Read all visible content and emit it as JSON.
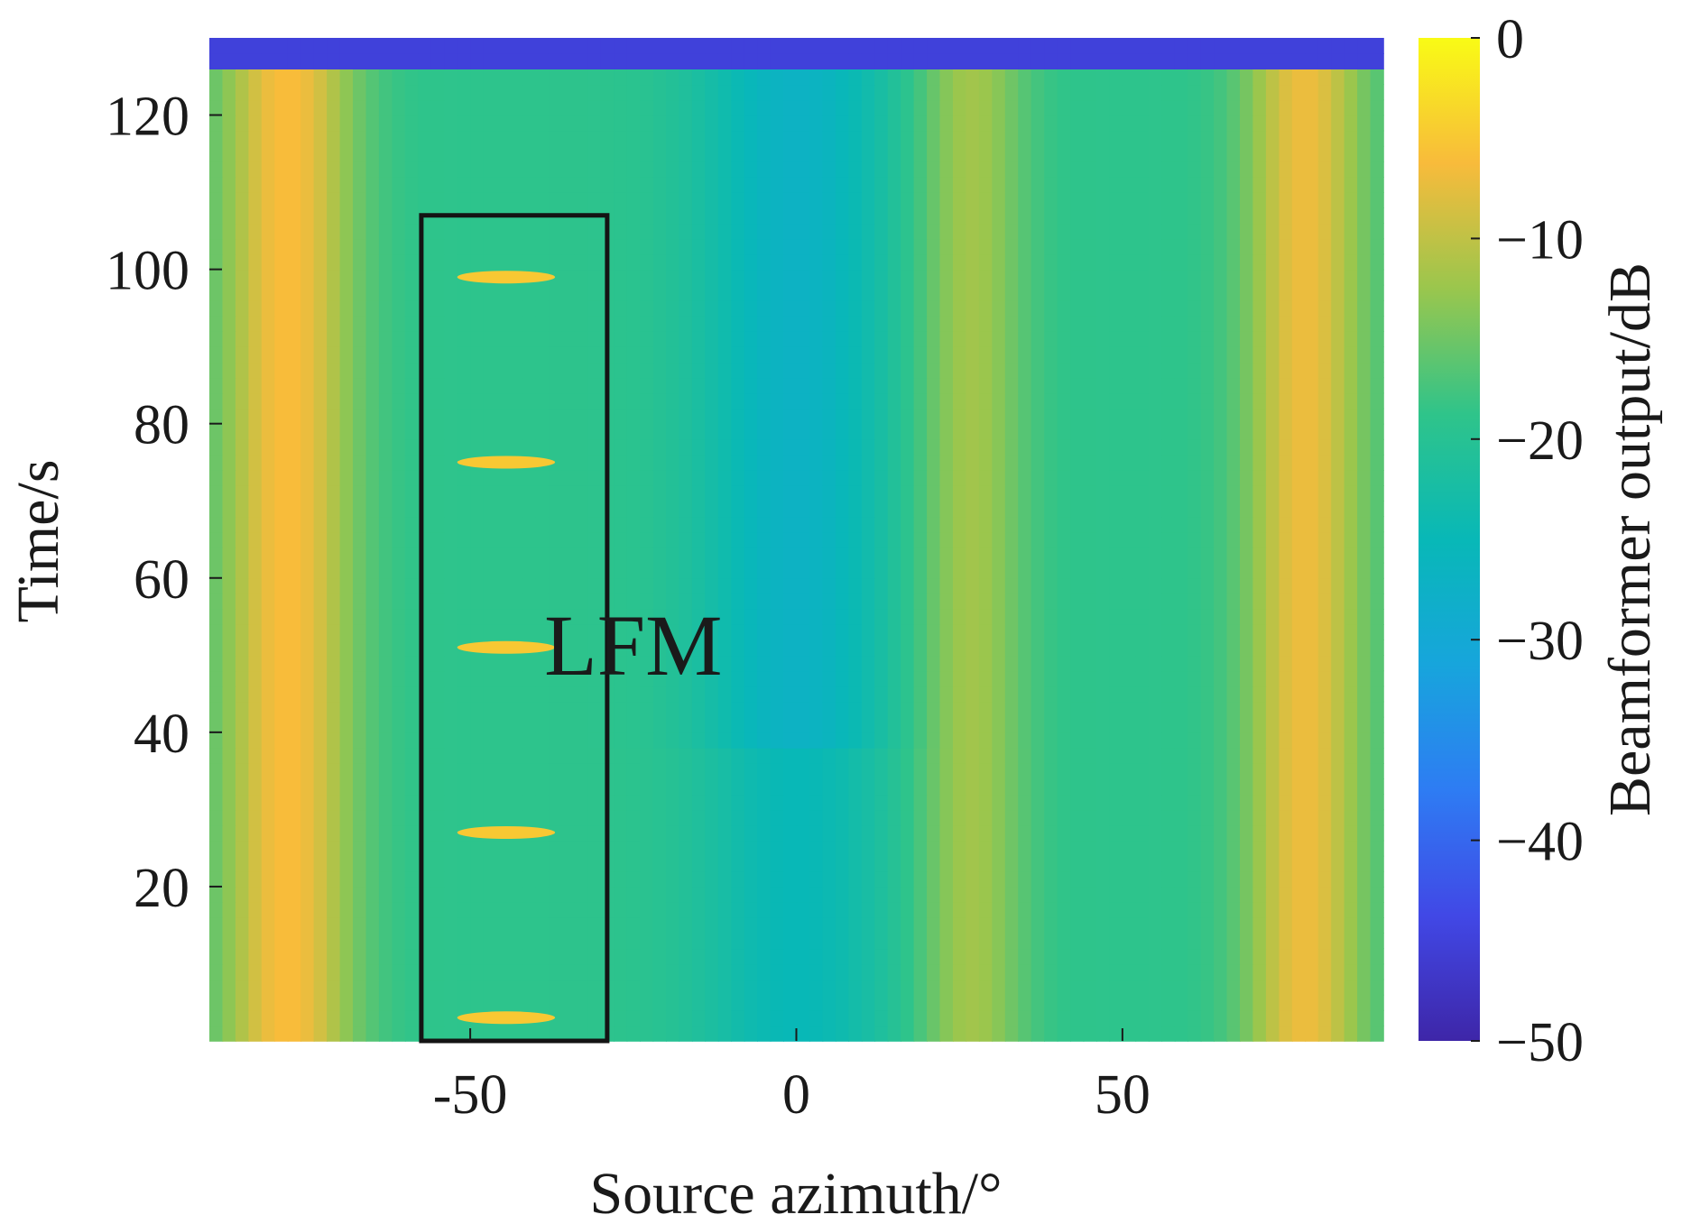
{
  "chart_data": {
    "type": "heatmap",
    "title": "",
    "xlabel": "Source azimuth/°",
    "ylabel": "Time/s",
    "colorbar_label": "Beamformer output/dB",
    "xlim": [
      -90,
      90
    ],
    "ylim": [
      0,
      130
    ],
    "clim": [
      -50,
      0
    ],
    "colormap": "parula",
    "x_ticks": [
      {
        "value": -50,
        "label": "-50"
      },
      {
        "value": 0,
        "label": "0"
      },
      {
        "value": 50,
        "label": "50"
      }
    ],
    "y_ticks": [
      {
        "value": 20,
        "label": "20"
      },
      {
        "value": 40,
        "label": "40"
      },
      {
        "value": 60,
        "label": "60"
      },
      {
        "value": 80,
        "label": "80"
      },
      {
        "value": 100,
        "label": "100"
      },
      {
        "value": 120,
        "label": "120"
      }
    ],
    "colorbar_ticks": [
      {
        "value": 0,
        "label": "0"
      },
      {
        "value": -10,
        "label": "−10"
      },
      {
        "value": -20,
        "label": "−20"
      },
      {
        "value": -30,
        "label": "−30"
      },
      {
        "value": -40,
        "label": "−40"
      },
      {
        "value": -50,
        "label": "−50"
      }
    ],
    "features": {
      "background_db": -19,
      "top_band": {
        "time_from": 127,
        "time_to": 130,
        "db": -45
      },
      "azimuth_bands": [
        {
          "center": -78,
          "width": 20,
          "db": -6
        },
        {
          "center": 78,
          "width": 18,
          "db": -7
        },
        {
          "center": 0,
          "width": 30,
          "db": -27,
          "time_from": 38,
          "time_to": 130
        },
        {
          "center": 0,
          "width": 30,
          "db": -25,
          "time_from": 0,
          "time_to": 38
        },
        {
          "center": 27,
          "width": 16,
          "db": -12
        }
      ],
      "lfm_pulses": [
        {
          "time": 3,
          "az_from": -52,
          "az_to": -37,
          "db": -5
        },
        {
          "time": 27,
          "az_from": -52,
          "az_to": -37,
          "db": -5
        },
        {
          "time": 51,
          "az_from": -52,
          "az_to": -37,
          "db": -5
        },
        {
          "time": 75,
          "az_from": -52,
          "az_to": -37,
          "db": -5
        },
        {
          "time": 99,
          "az_from": -52,
          "az_to": -37,
          "db": -5
        }
      ]
    },
    "annotations": [
      {
        "text": "LFM",
        "x": -25,
        "y": 51
      }
    ],
    "highlight_box": {
      "x_from": -57.5,
      "x_to": -29,
      "y_from": 0,
      "y_to": 107
    }
  }
}
